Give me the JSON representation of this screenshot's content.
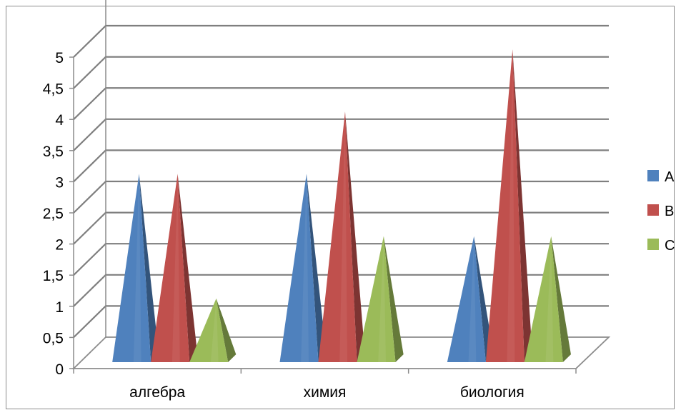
{
  "chart_data": {
    "type": "bar",
    "style": "3d-pyramid",
    "title": "",
    "xlabel": "",
    "ylabel": "",
    "categories": [
      "алгебра",
      "химия",
      "биология"
    ],
    "series": [
      {
        "name": "A",
        "color": "#4f81bd",
        "values": [
          3,
          3,
          2
        ]
      },
      {
        "name": "B",
        "color": "#c0504d",
        "values": [
          3,
          4,
          5
        ]
      },
      {
        "name": "C",
        "color": "#9bbb59",
        "values": [
          1,
          2,
          2
        ]
      }
    ],
    "ylim": [
      0,
      5
    ],
    "yticks": [
      "0",
      "0,5",
      "1",
      "1,5",
      "2",
      "2,5",
      "3",
      "3,5",
      "4",
      "4,5",
      "5"
    ],
    "grid": true,
    "legend_position": "right"
  }
}
